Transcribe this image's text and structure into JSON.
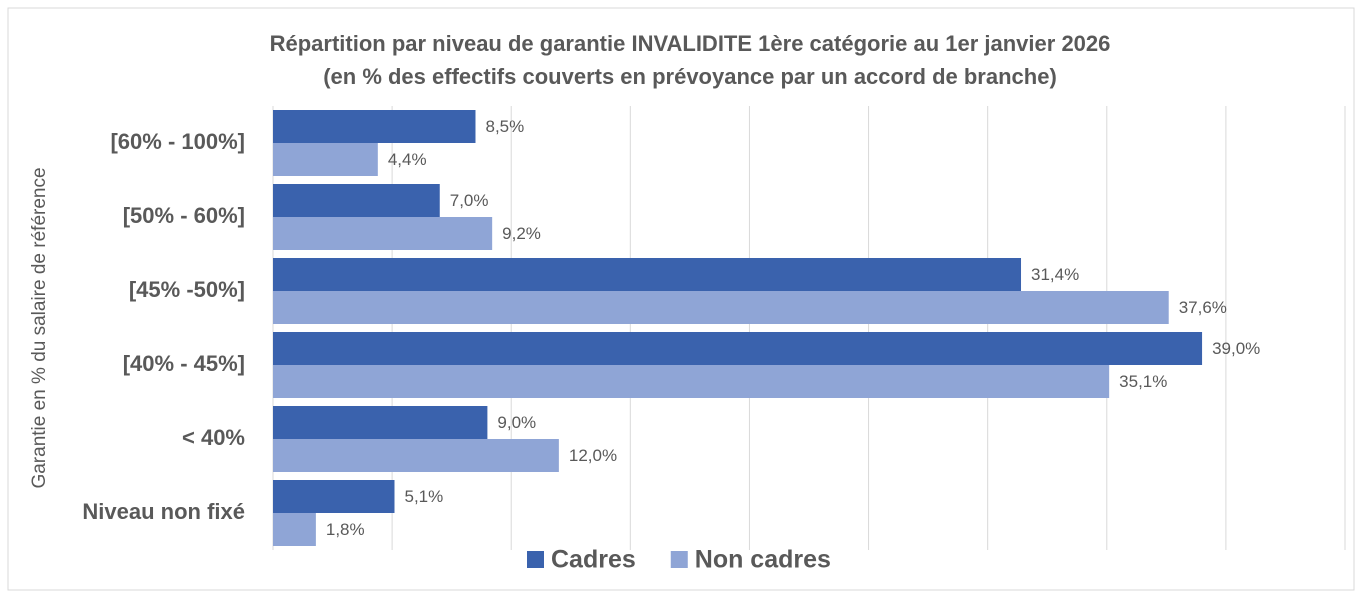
{
  "chart_data": {
    "type": "bar",
    "orientation": "horizontal",
    "title": "Répartition par niveau de garantie INVALIDITE 1ère catégorie au 1er janvier 2026",
    "subtitle": "(en % des effectifs couverts en prévoyance par un accord de branche)",
    "y_label": "Garantie en % du salaire de référence",
    "categories": [
      "[60% - 100%]",
      "[50% - 60%]",
      "[45% -50%]",
      "[40% - 45%]",
      "< 40%",
      "Niveau non fixé"
    ],
    "series": [
      {
        "name": "Cadres",
        "color": "#3a62ad",
        "values": [
          8.5,
          7.0,
          31.4,
          39.0,
          9.0,
          5.1
        ],
        "value_labels": [
          "8,5%",
          "7,0%",
          "31,4%",
          "39,0%",
          "9,0%",
          "5,1%"
        ]
      },
      {
        "name": "Non cadres",
        "color": "#8fa5d6",
        "values": [
          4.4,
          9.2,
          37.6,
          35.1,
          12.0,
          1.8
        ],
        "value_labels": [
          "4,4%",
          "9,2%",
          "37,6%",
          "35,1%",
          "12,0%",
          "1,8%"
        ]
      }
    ],
    "xlim": [
      0,
      45
    ],
    "xticks": [
      0,
      5,
      10,
      15,
      20,
      25,
      30,
      35,
      40,
      45
    ],
    "grid": true,
    "legend": "bottom"
  }
}
